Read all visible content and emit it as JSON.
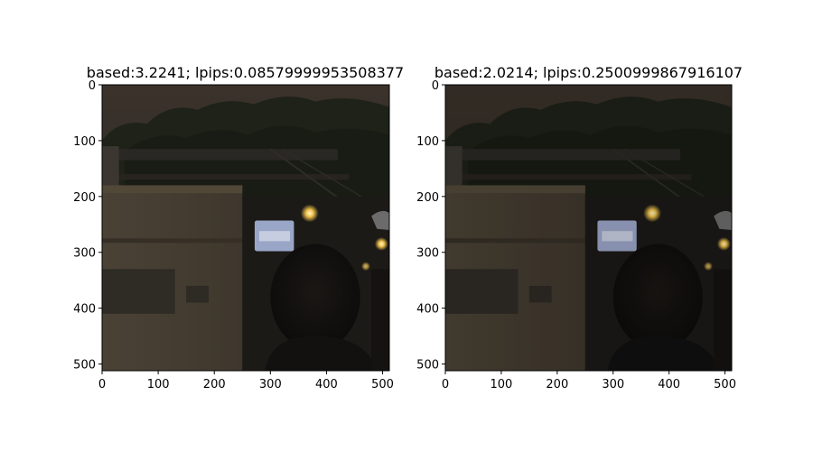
{
  "panels": [
    {
      "title": "based:3.2241; lpips:0.08579999953508377",
      "xticks": [
        "0",
        "100",
        "200",
        "300",
        "400",
        "500"
      ],
      "yticks": [
        "0",
        "100",
        "200",
        "300",
        "400",
        "500"
      ],
      "xlim": [
        0,
        512
      ],
      "ylim": [
        512,
        0
      ]
    },
    {
      "title": "based:2.0214; lpips:0.2500999867916107",
      "xticks": [
        "0",
        "100",
        "200",
        "300",
        "400",
        "500"
      ],
      "yticks": [
        "0",
        "100",
        "200",
        "300",
        "400",
        "500"
      ],
      "xlim": [
        0,
        512
      ],
      "ylim": [
        512,
        0
      ]
    }
  ]
}
